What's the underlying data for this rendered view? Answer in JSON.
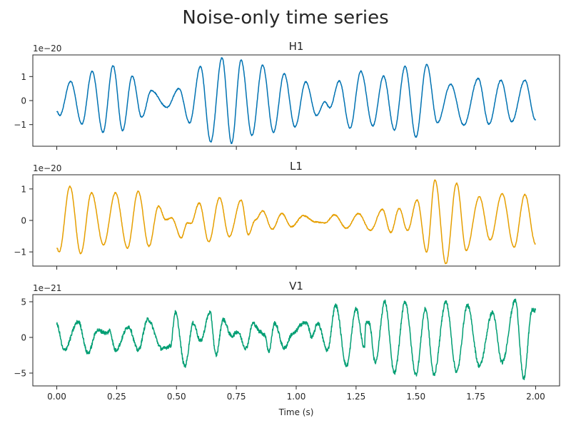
{
  "figure": {
    "title": "Noise-only time series"
  },
  "chart_data": [
    {
      "type": "line",
      "title": "H1",
      "scale_label": "1e−20",
      "color": "#0072b2",
      "xlim": [
        -0.1,
        2.1
      ],
      "ylim": [
        -1.9,
        1.9
      ],
      "yticks": [
        -1,
        0,
        1
      ],
      "ytick_labels": [
        "−1",
        "0",
        "1"
      ],
      "xticks": [
        0.0,
        0.25,
        0.5,
        0.75,
        1.0,
        1.25,
        1.5,
        1.75,
        2.0
      ],
      "show_xtick_labels": false,
      "xlabel": "",
      "extrema": [
        [
          0.0,
          -0.45
        ],
        [
          0.012,
          -0.62
        ],
        [
          0.058,
          0.8
        ],
        [
          0.105,
          -0.98
        ],
        [
          0.148,
          1.22
        ],
        [
          0.193,
          -1.32
        ],
        [
          0.235,
          1.45
        ],
        [
          0.275,
          -1.25
        ],
        [
          0.315,
          1.02
        ],
        [
          0.355,
          -0.7
        ],
        [
          0.395,
          0.42
        ],
        [
          0.46,
          -0.28
        ],
        [
          0.51,
          0.5
        ],
        [
          0.555,
          -0.92
        ],
        [
          0.6,
          1.42
        ],
        [
          0.643,
          -1.72
        ],
        [
          0.69,
          1.78
        ],
        [
          0.73,
          -1.78
        ],
        [
          0.77,
          1.68
        ],
        [
          0.815,
          -1.45
        ],
        [
          0.86,
          1.48
        ],
        [
          0.905,
          -1.32
        ],
        [
          0.95,
          1.12
        ],
        [
          0.995,
          -1.1
        ],
        [
          1.04,
          0.78
        ],
        [
          1.085,
          -0.62
        ],
        [
          1.12,
          -0.05
        ],
        [
          1.14,
          -0.3
        ],
        [
          1.18,
          0.82
        ],
        [
          1.225,
          -1.15
        ],
        [
          1.27,
          1.22
        ],
        [
          1.32,
          -1.05
        ],
        [
          1.365,
          1.02
        ],
        [
          1.41,
          -1.22
        ],
        [
          1.455,
          1.42
        ],
        [
          1.5,
          -1.52
        ],
        [
          1.545,
          1.5
        ],
        [
          1.59,
          -0.92
        ],
        [
          1.645,
          0.68
        ],
        [
          1.7,
          -1.02
        ],
        [
          1.76,
          0.92
        ],
        [
          1.805,
          -0.98
        ],
        [
          1.855,
          0.85
        ],
        [
          1.9,
          -0.88
        ],
        [
          1.955,
          0.85
        ],
        [
          2.0,
          -0.82
        ]
      ]
    },
    {
      "type": "line",
      "title": "L1",
      "scale_label": "1e−20",
      "color": "#e69f00",
      "xlim": [
        -0.1,
        2.1
      ],
      "ylim": [
        -1.45,
        1.45
      ],
      "yticks": [
        -1,
        0,
        1
      ],
      "ytick_labels": [
        "−1",
        "0",
        "1"
      ],
      "xticks": [
        0.0,
        0.25,
        0.5,
        0.75,
        1.0,
        1.25,
        1.5,
        1.75,
        2.0
      ],
      "show_xtick_labels": false,
      "xlabel": "",
      "extrema": [
        [
          0.0,
          -0.88
        ],
        [
          0.01,
          -1.0
        ],
        [
          0.055,
          1.08
        ],
        [
          0.1,
          -1.05
        ],
        [
          0.145,
          0.88
        ],
        [
          0.195,
          -0.78
        ],
        [
          0.245,
          0.88
        ],
        [
          0.295,
          -0.88
        ],
        [
          0.34,
          0.92
        ],
        [
          0.385,
          -0.82
        ],
        [
          0.425,
          0.45
        ],
        [
          0.455,
          0.02
        ],
        [
          0.48,
          0.08
        ],
        [
          0.52,
          -0.55
        ],
        [
          0.545,
          -0.08
        ],
        [
          0.56,
          -0.1
        ],
        [
          0.595,
          0.55
        ],
        [
          0.635,
          -0.68
        ],
        [
          0.68,
          0.72
        ],
        [
          0.72,
          -0.52
        ],
        [
          0.77,
          0.65
        ],
        [
          0.8,
          -0.45
        ],
        [
          0.83,
          0.02
        ],
        [
          0.86,
          0.3
        ],
        [
          0.9,
          -0.28
        ],
        [
          0.94,
          0.22
        ],
        [
          0.98,
          -0.2
        ],
        [
          1.03,
          0.15
        ],
        [
          1.08,
          -0.05
        ],
        [
          1.12,
          -0.08
        ],
        [
          1.16,
          0.18
        ],
        [
          1.21,
          -0.25
        ],
        [
          1.26,
          0.22
        ],
        [
          1.31,
          -0.32
        ],
        [
          1.36,
          0.35
        ],
        [
          1.395,
          -0.38
        ],
        [
          1.43,
          0.38
        ],
        [
          1.465,
          -0.32
        ],
        [
          1.505,
          0.65
        ],
        [
          1.545,
          -1.0
        ],
        [
          1.58,
          1.28
        ],
        [
          1.625,
          -1.38
        ],
        [
          1.67,
          1.18
        ],
        [
          1.71,
          -0.95
        ],
        [
          1.765,
          0.75
        ],
        [
          1.81,
          -0.62
        ],
        [
          1.86,
          0.85
        ],
        [
          1.91,
          -0.85
        ],
        [
          1.955,
          0.82
        ],
        [
          2.0,
          -0.75
        ]
      ]
    },
    {
      "type": "line",
      "title": "V1",
      "scale_label": "1e−21",
      "color": "#009e73",
      "xlim": [
        -0.1,
        2.1
      ],
      "ylim": [
        -6.8,
        6.0
      ],
      "yticks": [
        -5,
        0,
        5
      ],
      "ytick_labels": [
        "−5",
        "0",
        "5"
      ],
      "xticks": [
        0.0,
        0.25,
        0.5,
        0.75,
        1.0,
        1.25,
        1.5,
        1.75,
        2.0
      ],
      "xtick_labels": [
        "0.00",
        "0.25",
        "0.50",
        "0.75",
        "1.00",
        "1.25",
        "1.50",
        "1.75",
        "2.00"
      ],
      "show_xtick_labels": true,
      "xlabel": "Time (s)",
      "extrema": [
        [
          0.0,
          1.8
        ],
        [
          0.03,
          -1.8
        ],
        [
          0.09,
          2.2
        ],
        [
          0.13,
          -2.2
        ],
        [
          0.17,
          1.0
        ],
        [
          0.21,
          0.6
        ],
        [
          0.22,
          1.0
        ],
        [
          0.245,
          -1.8
        ],
        [
          0.3,
          1.5
        ],
        [
          0.34,
          -1.8
        ],
        [
          0.38,
          2.5
        ],
        [
          0.44,
          -1.6
        ],
        [
          0.475,
          -1.2
        ],
        [
          0.495,
          3.5
        ],
        [
          0.535,
          -4.0
        ],
        [
          0.57,
          2.0
        ],
        [
          0.6,
          -0.5
        ],
        [
          0.64,
          3.5
        ],
        [
          0.665,
          -2.5
        ],
        [
          0.695,
          2.5
        ],
        [
          0.73,
          0.2
        ],
        [
          0.755,
          0.8
        ],
        [
          0.79,
          -1.5
        ],
        [
          0.82,
          2.0
        ],
        [
          0.85,
          0.8
        ],
        [
          0.87,
          0.3
        ],
        [
          0.885,
          -2.0
        ],
        [
          0.91,
          2.0
        ],
        [
          0.95,
          -1.5
        ],
        [
          0.985,
          0.5
        ],
        [
          1.03,
          2.0
        ],
        [
          1.045,
          2.0
        ],
        [
          1.065,
          0.0
        ],
        [
          1.09,
          2.0
        ],
        [
          1.13,
          -1.8
        ],
        [
          1.165,
          4.5
        ],
        [
          1.21,
          -4.0
        ],
        [
          1.25,
          4.0
        ],
        [
          1.285,
          -1.5
        ],
        [
          1.29,
          2.0
        ],
        [
          1.305,
          2.0
        ],
        [
          1.33,
          -3.5
        ],
        [
          1.37,
          5.0
        ],
        [
          1.41,
          -5.0
        ],
        [
          1.455,
          5.0
        ],
        [
          1.5,
          -5.2
        ],
        [
          1.54,
          4.0
        ],
        [
          1.575,
          -5.2
        ],
        [
          1.625,
          5.0
        ],
        [
          1.67,
          -4.8
        ],
        [
          1.715,
          4.5
        ],
        [
          1.765,
          -4.0
        ],
        [
          1.82,
          3.5
        ],
        [
          1.86,
          -3.5
        ],
        [
          1.915,
          5.2
        ],
        [
          1.95,
          -5.8
        ],
        [
          1.985,
          3.8
        ],
        [
          2.0,
          3.8
        ]
      ]
    }
  ]
}
